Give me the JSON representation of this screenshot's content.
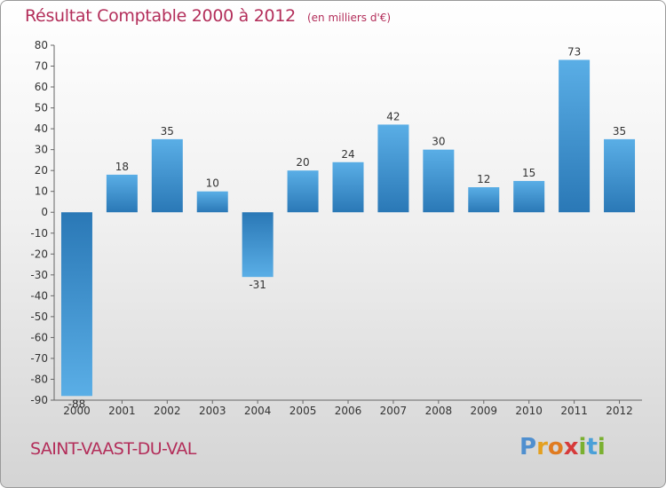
{
  "chart_data": {
    "type": "bar",
    "title": "Résultat Comptable 2000 à 2012",
    "subtitle": "(en milliers d'€)",
    "categories": [
      "2000",
      "2001",
      "2002",
      "2003",
      "2004",
      "2005",
      "2006",
      "2007",
      "2008",
      "2009",
      "2010",
      "2011",
      "2012"
    ],
    "values": [
      -88,
      18,
      35,
      10,
      -31,
      20,
      24,
      42,
      30,
      12,
      15,
      73,
      35
    ],
    "ylim": [
      -90,
      80
    ],
    "yticks": [
      80,
      70,
      60,
      50,
      40,
      30,
      20,
      10,
      0,
      -10,
      -20,
      -30,
      -40,
      -50,
      -60,
      -70,
      -80,
      -90
    ],
    "grid": false,
    "bar_color_top": "#5aaee6",
    "bar_color_bottom": "#2a78b6"
  },
  "footer": {
    "commune": "SAINT-VAAST-DU-VAL",
    "logo_letters": [
      "P",
      "r",
      "o",
      "x",
      "i",
      "t",
      "i"
    ],
    "logo_colors": [
      "#4f8fcf",
      "#e4a020",
      "#e07b20",
      "#d63a3a",
      "#7ab030",
      "#4aa0d8",
      "#7ab030"
    ]
  },
  "colors": {
    "accent": "#b32e5a"
  }
}
